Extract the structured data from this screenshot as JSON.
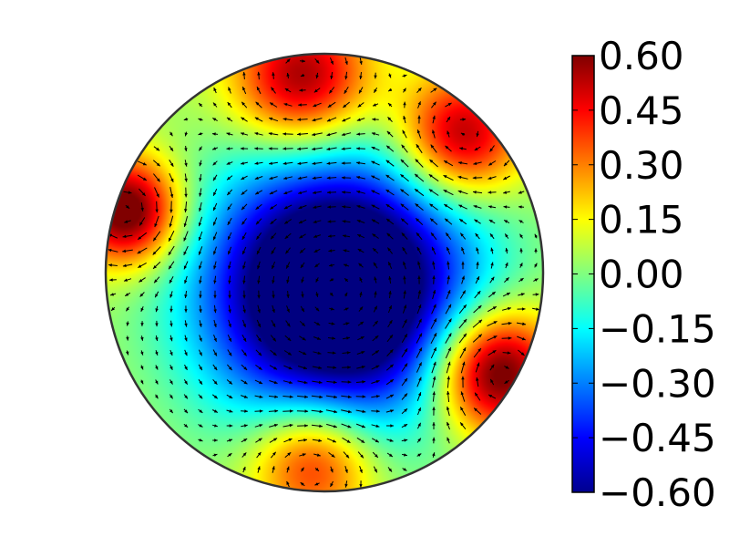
{
  "chart_data": {
    "type": "heatmap",
    "title": "",
    "domain": "disk",
    "overlay": "quiver",
    "colormap": "jet",
    "grid": false,
    "legend": "colorbar-right",
    "colorbar": {
      "range": [
        -0.6,
        0.6
      ],
      "ticks": [
        0.6,
        0.45,
        0.3,
        0.15,
        0.0,
        -0.15,
        -0.3,
        -0.45,
        -0.6
      ],
      "tick_labels": [
        "0.60",
        "0.45",
        "0.30",
        "0.15",
        "0.00",
        "−0.15",
        "−0.30",
        "−0.45",
        "−0.60"
      ]
    },
    "field_extrema": [
      {
        "region": "center-slightly-right-below",
        "value": -0.6
      },
      {
        "region": "upper-rim",
        "value": 0.5
      },
      {
        "region": "upper-right-rim",
        "value": 0.5
      },
      {
        "region": "left-rim",
        "value": 0.55
      },
      {
        "region": "right-lower-rim",
        "value": 0.55
      },
      {
        "region": "bottom-rim",
        "value": 0.4
      }
    ]
  }
}
